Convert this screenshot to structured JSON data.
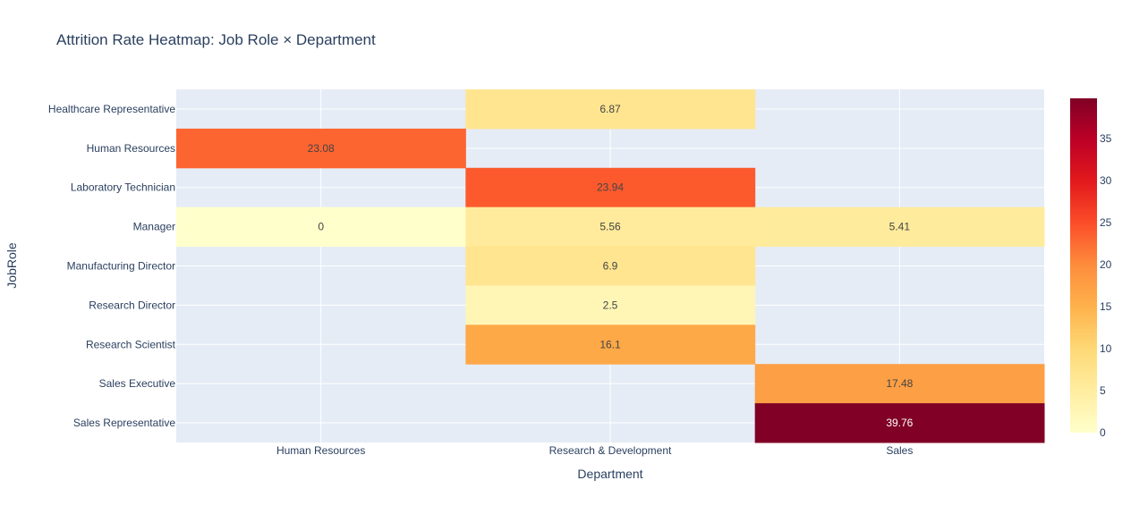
{
  "chart_data": {
    "type": "heatmap",
    "title": "Attrition Rate Heatmap: Job Role × Department",
    "xlabel": "Department",
    "ylabel": "JobRole",
    "x": [
      "Human Resources",
      "Research & Development",
      "Sales"
    ],
    "y": [
      "Healthcare Representative",
      "Human Resources",
      "Laboratory Technician",
      "Manager",
      "Manufacturing Director",
      "Research Director",
      "Research Scientist",
      "Sales Executive",
      "Sales Representative"
    ],
    "z": [
      [
        null,
        6.87,
        null
      ],
      [
        23.08,
        null,
        null
      ],
      [
        null,
        23.94,
        null
      ],
      [
        0,
        5.56,
        5.41
      ],
      [
        null,
        6.9,
        null
      ],
      [
        null,
        2.5,
        null
      ],
      [
        null,
        16.1,
        null
      ],
      [
        null,
        null,
        17.48
      ],
      [
        null,
        null,
        39.76
      ]
    ],
    "text": [
      [
        "",
        "6.87",
        ""
      ],
      [
        "23.08",
        "",
        ""
      ],
      [
        "",
        "23.94",
        ""
      ],
      [
        "0",
        "5.56",
        "5.41"
      ],
      [
        "",
        "6.9",
        ""
      ],
      [
        "",
        "2.5",
        ""
      ],
      [
        "",
        "16.1",
        ""
      ],
      [
        "",
        "",
        "17.48"
      ],
      [
        "",
        "",
        "39.76"
      ]
    ],
    "zlim": [
      0,
      39.76
    ],
    "colorscale": "YlOrRd",
    "colorscale_stops": [
      "#ffffcc",
      "#ffeda0",
      "#fed976",
      "#feb24c",
      "#fd8d3c",
      "#fc4e2a",
      "#e31a1c",
      "#bd0026",
      "#800026"
    ],
    "colorbar_ticks": [
      "0",
      "5",
      "10",
      "15",
      "20",
      "25",
      "30",
      "35"
    ],
    "grid": true,
    "plot_background": "#e5ecf6"
  }
}
